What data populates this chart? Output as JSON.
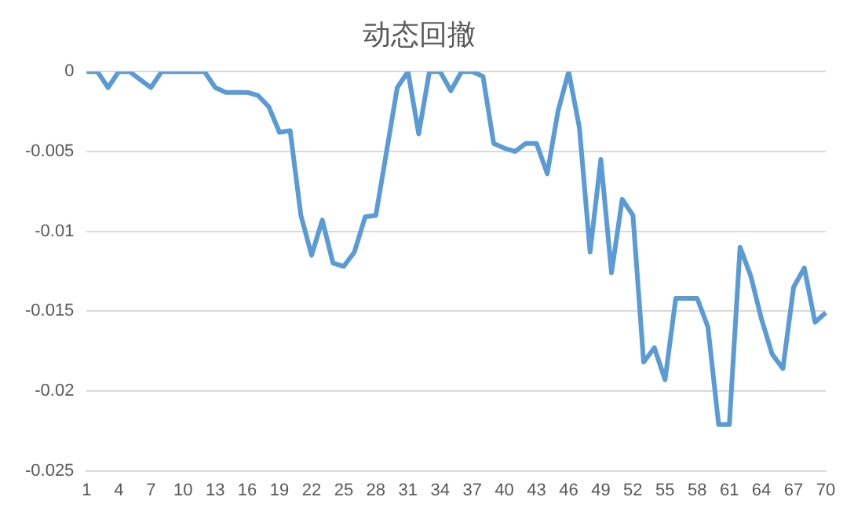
{
  "chart_data": {
    "type": "line",
    "title": "动态回撤",
    "categories": [
      "1",
      null,
      null,
      "4",
      null,
      null,
      "7",
      null,
      null,
      "10",
      null,
      null,
      "13",
      null,
      null,
      "16",
      null,
      null,
      "19",
      null,
      null,
      "22",
      null,
      null,
      "25",
      null,
      null,
      "28",
      null,
      null,
      "31",
      null,
      null,
      "34",
      null,
      null,
      "37",
      null,
      null,
      "40",
      null,
      null,
      "43",
      null,
      null,
      "46",
      null,
      null,
      "49",
      null,
      null,
      "52",
      null,
      null,
      "55",
      null,
      null,
      "58",
      null,
      null,
      "61",
      null,
      null,
      "64",
      null,
      null,
      "67",
      null,
      null,
      "70"
    ],
    "series": [
      {
        "color": "#5b9bd5",
        "values": [
          0,
          0,
          -0.001,
          0,
          0,
          -0.0005,
          -0.001,
          0,
          0,
          0,
          0,
          0,
          -0.001,
          -0.0013,
          -0.0013,
          -0.0013,
          -0.0015,
          -0.0022,
          -0.0038,
          -0.0037,
          -0.009,
          -0.0115,
          -0.0093,
          -0.012,
          -0.0122,
          -0.0113,
          -0.0091,
          -0.009,
          -0.005,
          -0.001,
          0,
          -0.0039,
          0,
          0,
          -0.0012,
          0,
          0,
          -0.0003,
          -0.0045,
          -0.0048,
          -0.005,
          -0.0045,
          -0.0045,
          -0.0064,
          -0.0025,
          0,
          -0.0035,
          -0.0113,
          -0.0055,
          -0.0126,
          -0.008,
          -0.009,
          -0.0182,
          -0.0173,
          -0.0193,
          -0.0142,
          -0.0142,
          -0.0142,
          -0.016,
          -0.0221,
          -0.0221,
          -0.011,
          -0.0128,
          -0.0155,
          -0.0177,
          -0.0186,
          -0.0135,
          -0.0123,
          -0.0157,
          -0.0151
        ]
      }
    ],
    "ylim": [
      -0.025,
      0
    ],
    "yticks": [
      0,
      -0.005,
      -0.01,
      -0.015,
      -0.02,
      -0.025
    ],
    "grid": "y",
    "legend": false,
    "marker": "none",
    "line_style": "solid"
  }
}
